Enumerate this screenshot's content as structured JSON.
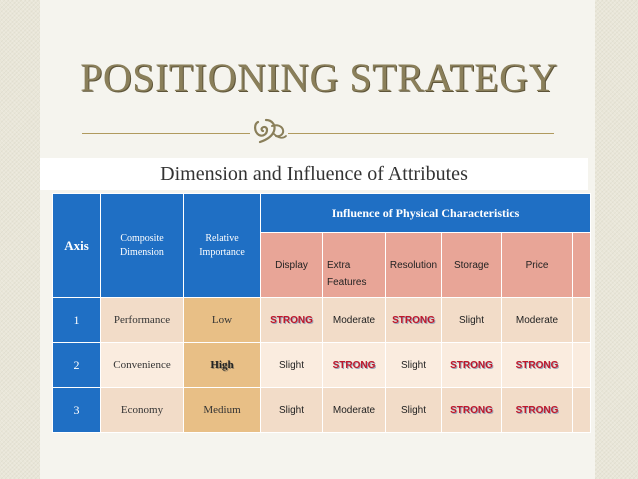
{
  "slide": {
    "title": "POSITIONING STRATEGY",
    "subtitle": "Dimension and Influence of Attributes"
  },
  "colors": {
    "header_blue": "#1f6fc4",
    "subheader_salmon": "#e8a597",
    "importance_tan": "#e8bf86",
    "row_beige": "#f2dcc8",
    "strong_red": "#c0172b",
    "title_gold": "#8a7f5a"
  },
  "ornament_icon": "fleuron-ornament-icon",
  "table": {
    "headers": {
      "axis": "Axis",
      "composite_line1": "Composite",
      "composite_line2": "Dimension",
      "relative_line1": "Relative",
      "relative_line2": "Importance",
      "influence": "Influence of Physical Characteristics"
    },
    "columns": [
      "Display",
      "Extra",
      "Resolution",
      "Storage",
      "Price"
    ],
    "extra_line2": "Features",
    "rows": [
      {
        "axis": "1",
        "dimension": "Performance",
        "importance": "Low",
        "cells": [
          "STRONG",
          "Moderate",
          "STRONG",
          "Slight",
          "Moderate"
        ]
      },
      {
        "axis": "2",
        "dimension": "Convenience",
        "importance": "High",
        "cells": [
          "Slight",
          "STRONG",
          "Slight",
          "STRONG",
          "STRONG"
        ]
      },
      {
        "axis": "3",
        "dimension": "Economy",
        "importance": "Medium",
        "cells": [
          "Slight",
          "Moderate",
          "Slight",
          "STRONG",
          "STRONG"
        ]
      }
    ]
  }
}
